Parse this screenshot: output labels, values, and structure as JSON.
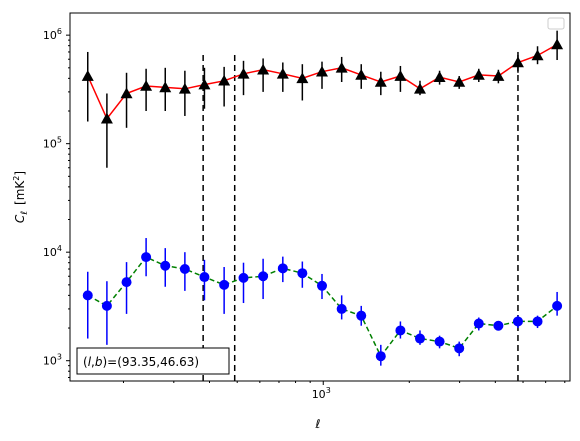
{
  "chart_data": {
    "type": "line",
    "xscale": "log",
    "yscale": "log",
    "xlim": [
      130,
      7300
    ],
    "ylim": [
      650,
      1600000
    ],
    "xlabel": "ℓ",
    "ylabel": "C_ℓ [mK²]",
    "ylabel_parts": {
      "sym": "C",
      "sub": "ℓ",
      "unit_open": "[mK",
      "unit_sup": "2",
      "unit_close": "]"
    },
    "x_ticks": [
      {
        "value": 1000,
        "base": "10",
        "exp": "3"
      }
    ],
    "y_ticks": [
      {
        "value": 1000,
        "base": "10",
        "exp": "3"
      },
      {
        "value": 10000,
        "base": "10",
        "exp": "4"
      },
      {
        "value": 100000,
        "base": "10",
        "exp": "5"
      },
      {
        "value": 1000000,
        "base": "10",
        "exp": "6"
      }
    ],
    "vlines": [
      {
        "x": 380,
        "ymin": 650,
        "ymax": 700000
      },
      {
        "x": 490,
        "ymin": 650,
        "ymax": 700000
      },
      {
        "x": 4800,
        "ymin": 650,
        "ymax": 700000
      }
    ],
    "legend": "top-right",
    "annotation": "(l,b)=(93.35,46.63)",
    "annotation_parts": {
      "open": "(",
      "l": "l",
      "comma": ",",
      "b": "b",
      "rest": ")=(93.35,46.63)"
    },
    "series": [
      {
        "color": "#ff0000",
        "marker": "triangle",
        "marker_color": "#000000",
        "linestyle": "solid",
        "x": [
          150,
          175,
          205,
          240,
          280,
          328,
          384,
          450,
          526,
          616,
          722,
          845,
          990,
          1160,
          1358,
          1590,
          1862,
          2180,
          2553,
          2990,
          3501,
          4100,
          4800,
          5620,
          6580
        ],
        "y": [
          420000,
          170000,
          290000,
          340000,
          330000,
          320000,
          350000,
          380000,
          440000,
          480000,
          440000,
          400000,
          460000,
          500000,
          430000,
          370000,
          420000,
          320000,
          410000,
          370000,
          430000,
          420000,
          560000,
          650000,
          820000
        ],
        "err_lo": [
          160000,
          60000,
          140000,
          200000,
          200000,
          180000,
          210000,
          220000,
          280000,
          300000,
          300000,
          250000,
          320000,
          370000,
          320000,
          280000,
          300000,
          280000,
          350000,
          320000,
          370000,
          360000,
          450000,
          540000,
          590000
        ],
        "err_hi": [
          700000,
          290000,
          450000,
          490000,
          500000,
          470000,
          500000,
          510000,
          580000,
          610000,
          560000,
          540000,
          570000,
          630000,
          540000,
          460000,
          520000,
          380000,
          470000,
          420000,
          490000,
          480000,
          700000,
          790000,
          1100000
        ]
      },
      {
        "color": "#008000",
        "marker": "circle",
        "marker_color": "#0000ff",
        "linestyle": "dashed",
        "x": [
          150,
          175,
          205,
          240,
          280,
          328,
          384,
          450,
          526,
          616,
          722,
          845,
          990,
          1160,
          1358,
          1590,
          1862,
          2180,
          2553,
          2990,
          3501,
          4100,
          4800,
          5620,
          6580
        ],
        "y": [
          4000,
          3200,
          5300,
          9000,
          7500,
          7000,
          5900,
          5000,
          5800,
          6000,
          7100,
          6400,
          4900,
          3000,
          2600,
          1100,
          1900,
          1600,
          1500,
          1300,
          2200,
          2100,
          2300,
          2300,
          3200
        ],
        "err_lo": [
          1600,
          1400,
          2700,
          6000,
          4800,
          4400,
          3600,
          2700,
          3400,
          3700,
          5300,
          4700,
          3700,
          2400,
          2100,
          900,
          1600,
          1400,
          1300,
          1100,
          1900,
          1900,
          2000,
          2000,
          2600
        ],
        "err_hi": [
          6600,
          5400,
          8100,
          13500,
          10900,
          10000,
          8500,
          7300,
          8000,
          8700,
          9100,
          8200,
          6300,
          4000,
          3200,
          1400,
          2300,
          1900,
          1700,
          1500,
          2500,
          2300,
          2600,
          2600,
          4300
        ]
      }
    ]
  }
}
